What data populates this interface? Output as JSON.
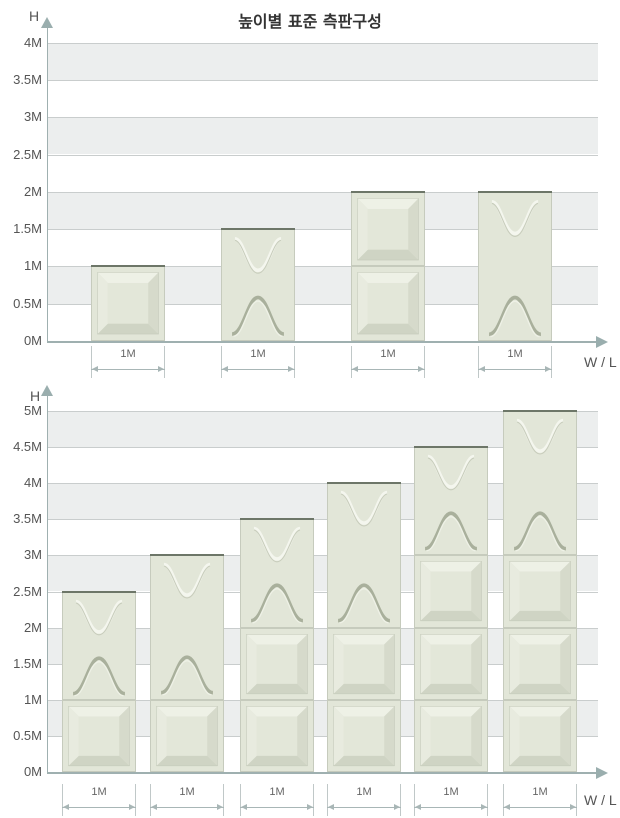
{
  "title": "높이별 표준 측판구성",
  "chart_data": [
    {
      "type": "stacked-panels",
      "ylabel": "H",
      "xlabel": "W / L",
      "ylim": [
        0,
        4
      ],
      "yticks": [
        "0M",
        "0.5M",
        "1M",
        "1.5M",
        "2M",
        "2.5M",
        "3M",
        "3.5M",
        "4M"
      ],
      "width_label": "1M",
      "columns": [
        {
          "total": 1,
          "panels": [
            {
              "type": "square",
              "h": 1
            }
          ]
        },
        {
          "total": 1.5,
          "panels": [
            {
              "type": "arch",
              "h": 1.5
            }
          ]
        },
        {
          "total": 2,
          "panels": [
            {
              "type": "square",
              "h": 1
            },
            {
              "type": "square",
              "h": 1
            }
          ]
        },
        {
          "total": 2,
          "panels": [
            {
              "type": "arch",
              "h": 2
            }
          ]
        }
      ]
    },
    {
      "type": "stacked-panels",
      "ylabel": "H",
      "xlabel": "W / L",
      "ylim": [
        0,
        5
      ],
      "yticks": [
        "0M",
        "0.5M",
        "1M",
        "1.5M",
        "2M",
        "2.5M",
        "3M",
        "3.5M",
        "4M",
        "4.5M",
        "5M"
      ],
      "width_label": "1M",
      "columns": [
        {
          "total": 2.5,
          "panels": [
            {
              "type": "square",
              "h": 1
            },
            {
              "type": "arch",
              "h": 1.5
            }
          ]
        },
        {
          "total": 3,
          "panels": [
            {
              "type": "square",
              "h": 1
            },
            {
              "type": "arch",
              "h": 2
            }
          ]
        },
        {
          "total": 3.5,
          "panels": [
            {
              "type": "square",
              "h": 1
            },
            {
              "type": "square",
              "h": 1
            },
            {
              "type": "arch",
              "h": 1.5
            }
          ]
        },
        {
          "total": 4,
          "panels": [
            {
              "type": "square",
              "h": 1
            },
            {
              "type": "square",
              "h": 1
            },
            {
              "type": "arch",
              "h": 2
            }
          ]
        },
        {
          "total": 4.5,
          "panels": [
            {
              "type": "square",
              "h": 1
            },
            {
              "type": "square",
              "h": 1
            },
            {
              "type": "square",
              "h": 1
            },
            {
              "type": "arch",
              "h": 1.5
            }
          ]
        },
        {
          "total": 5,
          "panels": [
            {
              "type": "square",
              "h": 1
            },
            {
              "type": "square",
              "h": 1
            },
            {
              "type": "square",
              "h": 1
            },
            {
              "type": "arch",
              "h": 2
            }
          ]
        }
      ]
    }
  ]
}
